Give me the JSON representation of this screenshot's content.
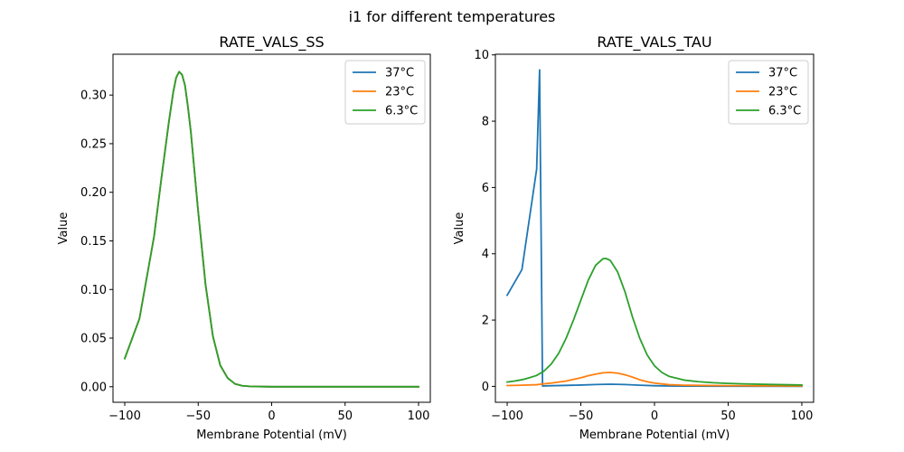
{
  "suptitle": "i1 for different temperatures",
  "chart_data": [
    {
      "type": "line",
      "title": "RATE_VALS_SS",
      "xlabel": "Membrane Potential (mV)",
      "ylabel": "Value",
      "xlim": [
        -108,
        108
      ],
      "ylim": [
        -0.016,
        0.342
      ],
      "xticks": [
        -100,
        -50,
        0,
        50,
        100
      ],
      "xtick_labels": [
        "−100",
        "−50",
        "0",
        "50",
        "100"
      ],
      "yticks": [
        0.0,
        0.05,
        0.1,
        0.15,
        0.2,
        0.25,
        0.3
      ],
      "ytick_labels": [
        "0.00",
        "0.05",
        "0.10",
        "0.15",
        "0.20",
        "0.25",
        "0.30"
      ],
      "legend_position": "upper right",
      "series": [
        {
          "name": "37°C",
          "color": "#1f77b4",
          "x": [
            -100,
            -90,
            -80,
            -75,
            -70,
            -67,
            -65,
            -63,
            -61,
            -59,
            -57,
            -55,
            -50,
            -45,
            -40,
            -35,
            -30,
            -25,
            -20,
            -15,
            -10,
            0,
            10,
            50,
            100
          ],
          "y": [
            0.029,
            0.07,
            0.155,
            0.215,
            0.272,
            0.303,
            0.318,
            0.324,
            0.321,
            0.31,
            0.288,
            0.262,
            0.18,
            0.105,
            0.052,
            0.022,
            0.009,
            0.003,
            0.001,
            0.0004,
            0.0002,
            0.0,
            0.0,
            0.0,
            0.0
          ]
        },
        {
          "name": "23°C",
          "color": "#ff7f0e",
          "x": [
            -100,
            -90,
            -80,
            -75,
            -70,
            -67,
            -65,
            -63,
            -61,
            -59,
            -57,
            -55,
            -50,
            -45,
            -40,
            -35,
            -30,
            -25,
            -20,
            -15,
            -10,
            0,
            10,
            50,
            100
          ],
          "y": [
            0.029,
            0.07,
            0.155,
            0.215,
            0.272,
            0.303,
            0.318,
            0.324,
            0.321,
            0.31,
            0.288,
            0.262,
            0.18,
            0.105,
            0.052,
            0.022,
            0.009,
            0.003,
            0.001,
            0.0004,
            0.0002,
            0.0,
            0.0,
            0.0,
            0.0
          ]
        },
        {
          "name": "6.3°C",
          "color": "#2ca02c",
          "x": [
            -100,
            -90,
            -80,
            -75,
            -70,
            -67,
            -65,
            -63,
            -61,
            -59,
            -57,
            -55,
            -50,
            -45,
            -40,
            -35,
            -30,
            -25,
            -20,
            -15,
            -10,
            0,
            10,
            50,
            100
          ],
          "y": [
            0.029,
            0.07,
            0.155,
            0.215,
            0.272,
            0.303,
            0.318,
            0.324,
            0.321,
            0.31,
            0.288,
            0.262,
            0.18,
            0.105,
            0.052,
            0.022,
            0.009,
            0.003,
            0.001,
            0.0004,
            0.0002,
            0.0,
            0.0,
            0.0,
            0.0
          ]
        }
      ]
    },
    {
      "type": "line",
      "title": "RATE_VALS_TAU",
      "xlabel": "Membrane Potential (mV)",
      "ylabel": "Value",
      "xlim": [
        -108,
        108
      ],
      "ylim": [
        -0.48,
        10.02
      ],
      "xticks": [
        -100,
        -50,
        0,
        50,
        100
      ],
      "xtick_labels": [
        "−100",
        "−50",
        "0",
        "50",
        "100"
      ],
      "yticks": [
        0,
        2,
        4,
        6,
        8,
        10
      ],
      "ytick_labels": [
        "0",
        "2",
        "4",
        "6",
        "8",
        "10"
      ],
      "legend_position": "upper right",
      "series": [
        {
          "name": "37°C",
          "color": "#1f77b4",
          "x": [
            -100,
            -90,
            -80,
            -78,
            -76,
            -70,
            -60,
            -50,
            -40,
            -30,
            -20,
            -10,
            0,
            10,
            20,
            50,
            100
          ],
          "y": [
            2.75,
            3.52,
            6.55,
            9.55,
            0.01,
            0.02,
            0.03,
            0.04,
            0.055,
            0.065,
            0.055,
            0.035,
            0.02,
            0.012,
            0.008,
            0.004,
            0.002
          ]
        },
        {
          "name": "23°C",
          "color": "#ff7f0e",
          "x": [
            -100,
            -90,
            -80,
            -76,
            -70,
            -60,
            -50,
            -45,
            -40,
            -35,
            -30,
            -25,
            -20,
            -15,
            -10,
            -5,
            0,
            10,
            20,
            30,
            50,
            75,
            100
          ],
          "y": [
            0.025,
            0.035,
            0.05,
            0.07,
            0.1,
            0.16,
            0.26,
            0.32,
            0.37,
            0.41,
            0.42,
            0.4,
            0.35,
            0.28,
            0.2,
            0.14,
            0.1,
            0.05,
            0.035,
            0.03,
            0.022,
            0.015,
            0.01
          ]
        },
        {
          "name": "6.3°C",
          "color": "#2ca02c",
          "x": [
            -100,
            -95,
            -90,
            -85,
            -80,
            -75,
            -70,
            -65,
            -60,
            -55,
            -50,
            -45,
            -40,
            -35,
            -33,
            -30,
            -25,
            -20,
            -15,
            -10,
            -5,
            0,
            5,
            10,
            20,
            30,
            40,
            50,
            60,
            75,
            100
          ],
          "y": [
            0.13,
            0.16,
            0.2,
            0.26,
            0.33,
            0.46,
            0.68,
            1.0,
            1.45,
            2.0,
            2.6,
            3.2,
            3.65,
            3.85,
            3.86,
            3.8,
            3.45,
            2.85,
            2.1,
            1.45,
            0.95,
            0.62,
            0.42,
            0.3,
            0.19,
            0.14,
            0.11,
            0.09,
            0.075,
            0.06,
            0.04
          ]
        }
      ]
    }
  ]
}
